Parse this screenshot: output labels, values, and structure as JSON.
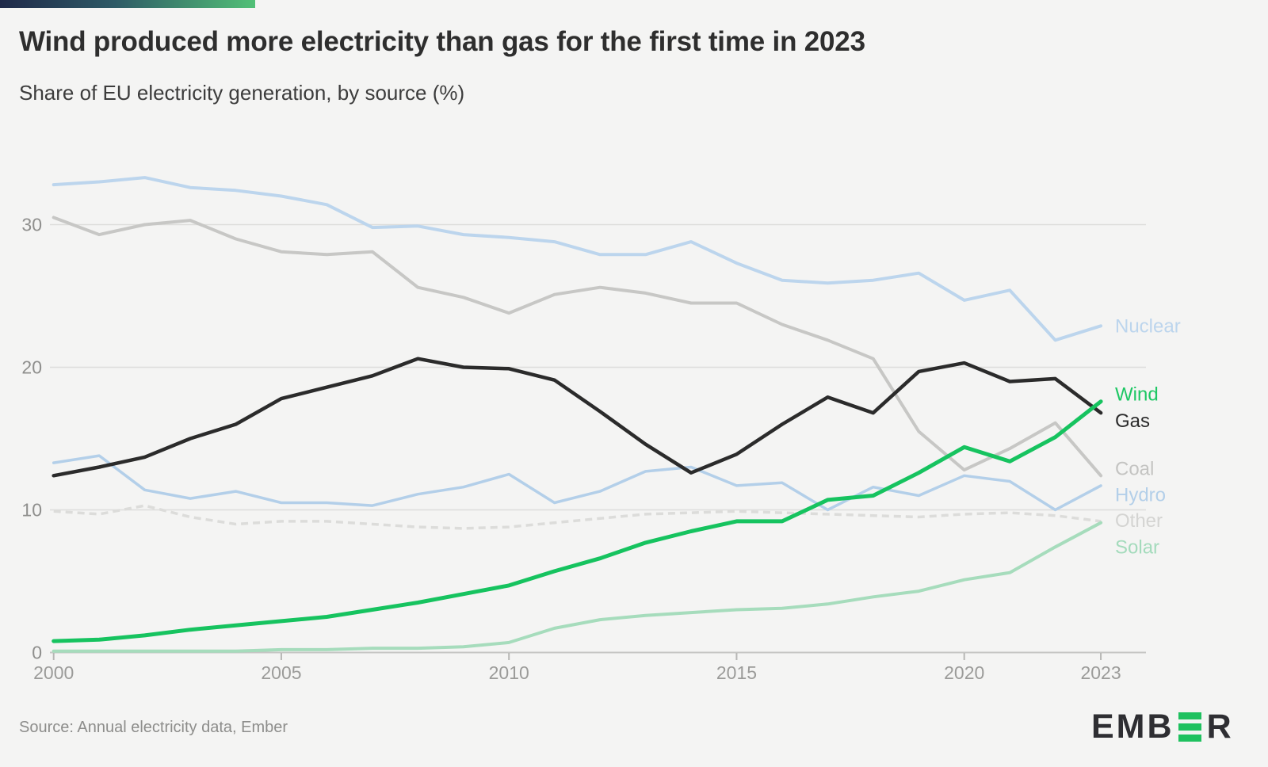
{
  "header": {
    "title": "Wind produced more electricity than gas for the first time in 2023",
    "subtitle": "Share of EU electricity generation, by source (%)"
  },
  "footer": {
    "source": "Source: Annual electricity data, Ember",
    "logo": {
      "part1": "EMB",
      "part2": "R",
      "green_bar_color": "#1fc15f"
    }
  },
  "colors": {
    "background": "#f4f4f3",
    "accent_gradient_start": "#1f2949",
    "accent_gradient_end": "#52c077",
    "gridline": "#dddddb",
    "axis_line": "#c6c6c4",
    "tick_text": "#9b9b99"
  },
  "chart_data": {
    "type": "line",
    "title": "Wind produced more electricity than gas for the first time in 2023",
    "subtitle": "Share of EU electricity generation, by source (%)",
    "xlabel": "",
    "ylabel": "Share of EU electricity generation (%)",
    "ylim": [
      0,
      34.5
    ],
    "yticks": [
      0,
      10,
      20,
      30
    ],
    "xticks": [
      2000,
      2005,
      2010,
      2015,
      2020,
      2023
    ],
    "grid": "horizontal",
    "legend_position": "right-end-labels",
    "x": [
      2000,
      2001,
      2002,
      2003,
      2004,
      2005,
      2006,
      2007,
      2008,
      2009,
      2010,
      2011,
      2012,
      2013,
      2014,
      2015,
      2016,
      2017,
      2018,
      2019,
      2020,
      2021,
      2022,
      2023
    ],
    "series": [
      {
        "name": "Other",
        "color": "#dcdcda",
        "label_color": "#d4d4d2",
        "width": 3.5,
        "dash": "9 6",
        "label_value": 9.25,
        "values": [
          9.9,
          9.7,
          10.3,
          9.5,
          9.0,
          9.2,
          9.2,
          9.0,
          8.8,
          8.7,
          8.8,
          9.1,
          9.4,
          9.7,
          9.8,
          9.9,
          9.8,
          9.7,
          9.6,
          9.5,
          9.7,
          9.8,
          9.6,
          9.2
        ]
      },
      {
        "name": "Solar",
        "color": "#a6dcbc",
        "label_color": "#a4dbbc",
        "width": 4,
        "label_value": 7.4,
        "values": [
          0.1,
          0.1,
          0.1,
          0.1,
          0.1,
          0.2,
          0.2,
          0.3,
          0.3,
          0.4,
          0.7,
          1.7,
          2.3,
          2.6,
          2.8,
          3.0,
          3.1,
          3.4,
          3.9,
          4.3,
          5.1,
          5.6,
          7.4,
          9.1
        ]
      },
      {
        "name": "Coal",
        "color": "#c7c7c5",
        "label_color": "#c4c4c2",
        "width": 4,
        "label_value": 12.9,
        "values": [
          30.5,
          29.3,
          30.0,
          30.3,
          29.0,
          28.1,
          27.9,
          28.1,
          25.6,
          24.9,
          23.8,
          25.1,
          25.6,
          25.2,
          24.5,
          24.5,
          23.0,
          21.9,
          20.6,
          15.5,
          12.8,
          14.3,
          16.1,
          12.4
        ]
      },
      {
        "name": "Hydro",
        "color": "#b3cfe9",
        "label_color": "#b3cfe9",
        "width": 3.5,
        "label_value": 11.05,
        "values": [
          13.3,
          13.8,
          11.4,
          10.8,
          11.3,
          10.5,
          10.5,
          10.3,
          11.1,
          11.6,
          12.5,
          10.5,
          11.3,
          12.7,
          13.0,
          11.7,
          11.9,
          10.0,
          11.6,
          11.0,
          12.4,
          12.0,
          10.0,
          11.7
        ]
      },
      {
        "name": "Nuclear",
        "color": "#bcd5ed",
        "label_color": "#bcd5ed",
        "width": 4,
        "label_value": 22.9,
        "values": [
          32.8,
          33.0,
          33.3,
          32.6,
          32.4,
          32.0,
          31.4,
          29.8,
          29.9,
          29.3,
          29.1,
          28.8,
          27.9,
          27.9,
          28.8,
          27.3,
          26.1,
          25.9,
          26.1,
          26.6,
          24.7,
          25.4,
          21.9,
          22.9
        ]
      },
      {
        "name": "Gas",
        "color": "#2b2b2b",
        "label_color": "#2b2b2b",
        "width": 4.5,
        "label_value": 16.25,
        "values": [
          12.4,
          13.0,
          13.7,
          15.0,
          16.0,
          17.8,
          18.6,
          19.4,
          20.6,
          20.0,
          19.9,
          19.1,
          16.9,
          14.6,
          12.6,
          13.9,
          16.0,
          17.9,
          16.8,
          19.7,
          20.3,
          19.0,
          19.2,
          16.8
        ]
      },
      {
        "name": "Wind",
        "color": "#16c35f",
        "label_color": "#1ec764",
        "width": 5,
        "label_value": 18.1,
        "values": [
          0.8,
          0.9,
          1.2,
          1.6,
          1.9,
          2.2,
          2.5,
          3.0,
          3.5,
          4.1,
          4.7,
          5.7,
          6.6,
          7.7,
          8.5,
          9.2,
          9.2,
          10.7,
          11.0,
          12.6,
          14.4,
          13.4,
          15.1,
          17.6
        ]
      }
    ]
  }
}
